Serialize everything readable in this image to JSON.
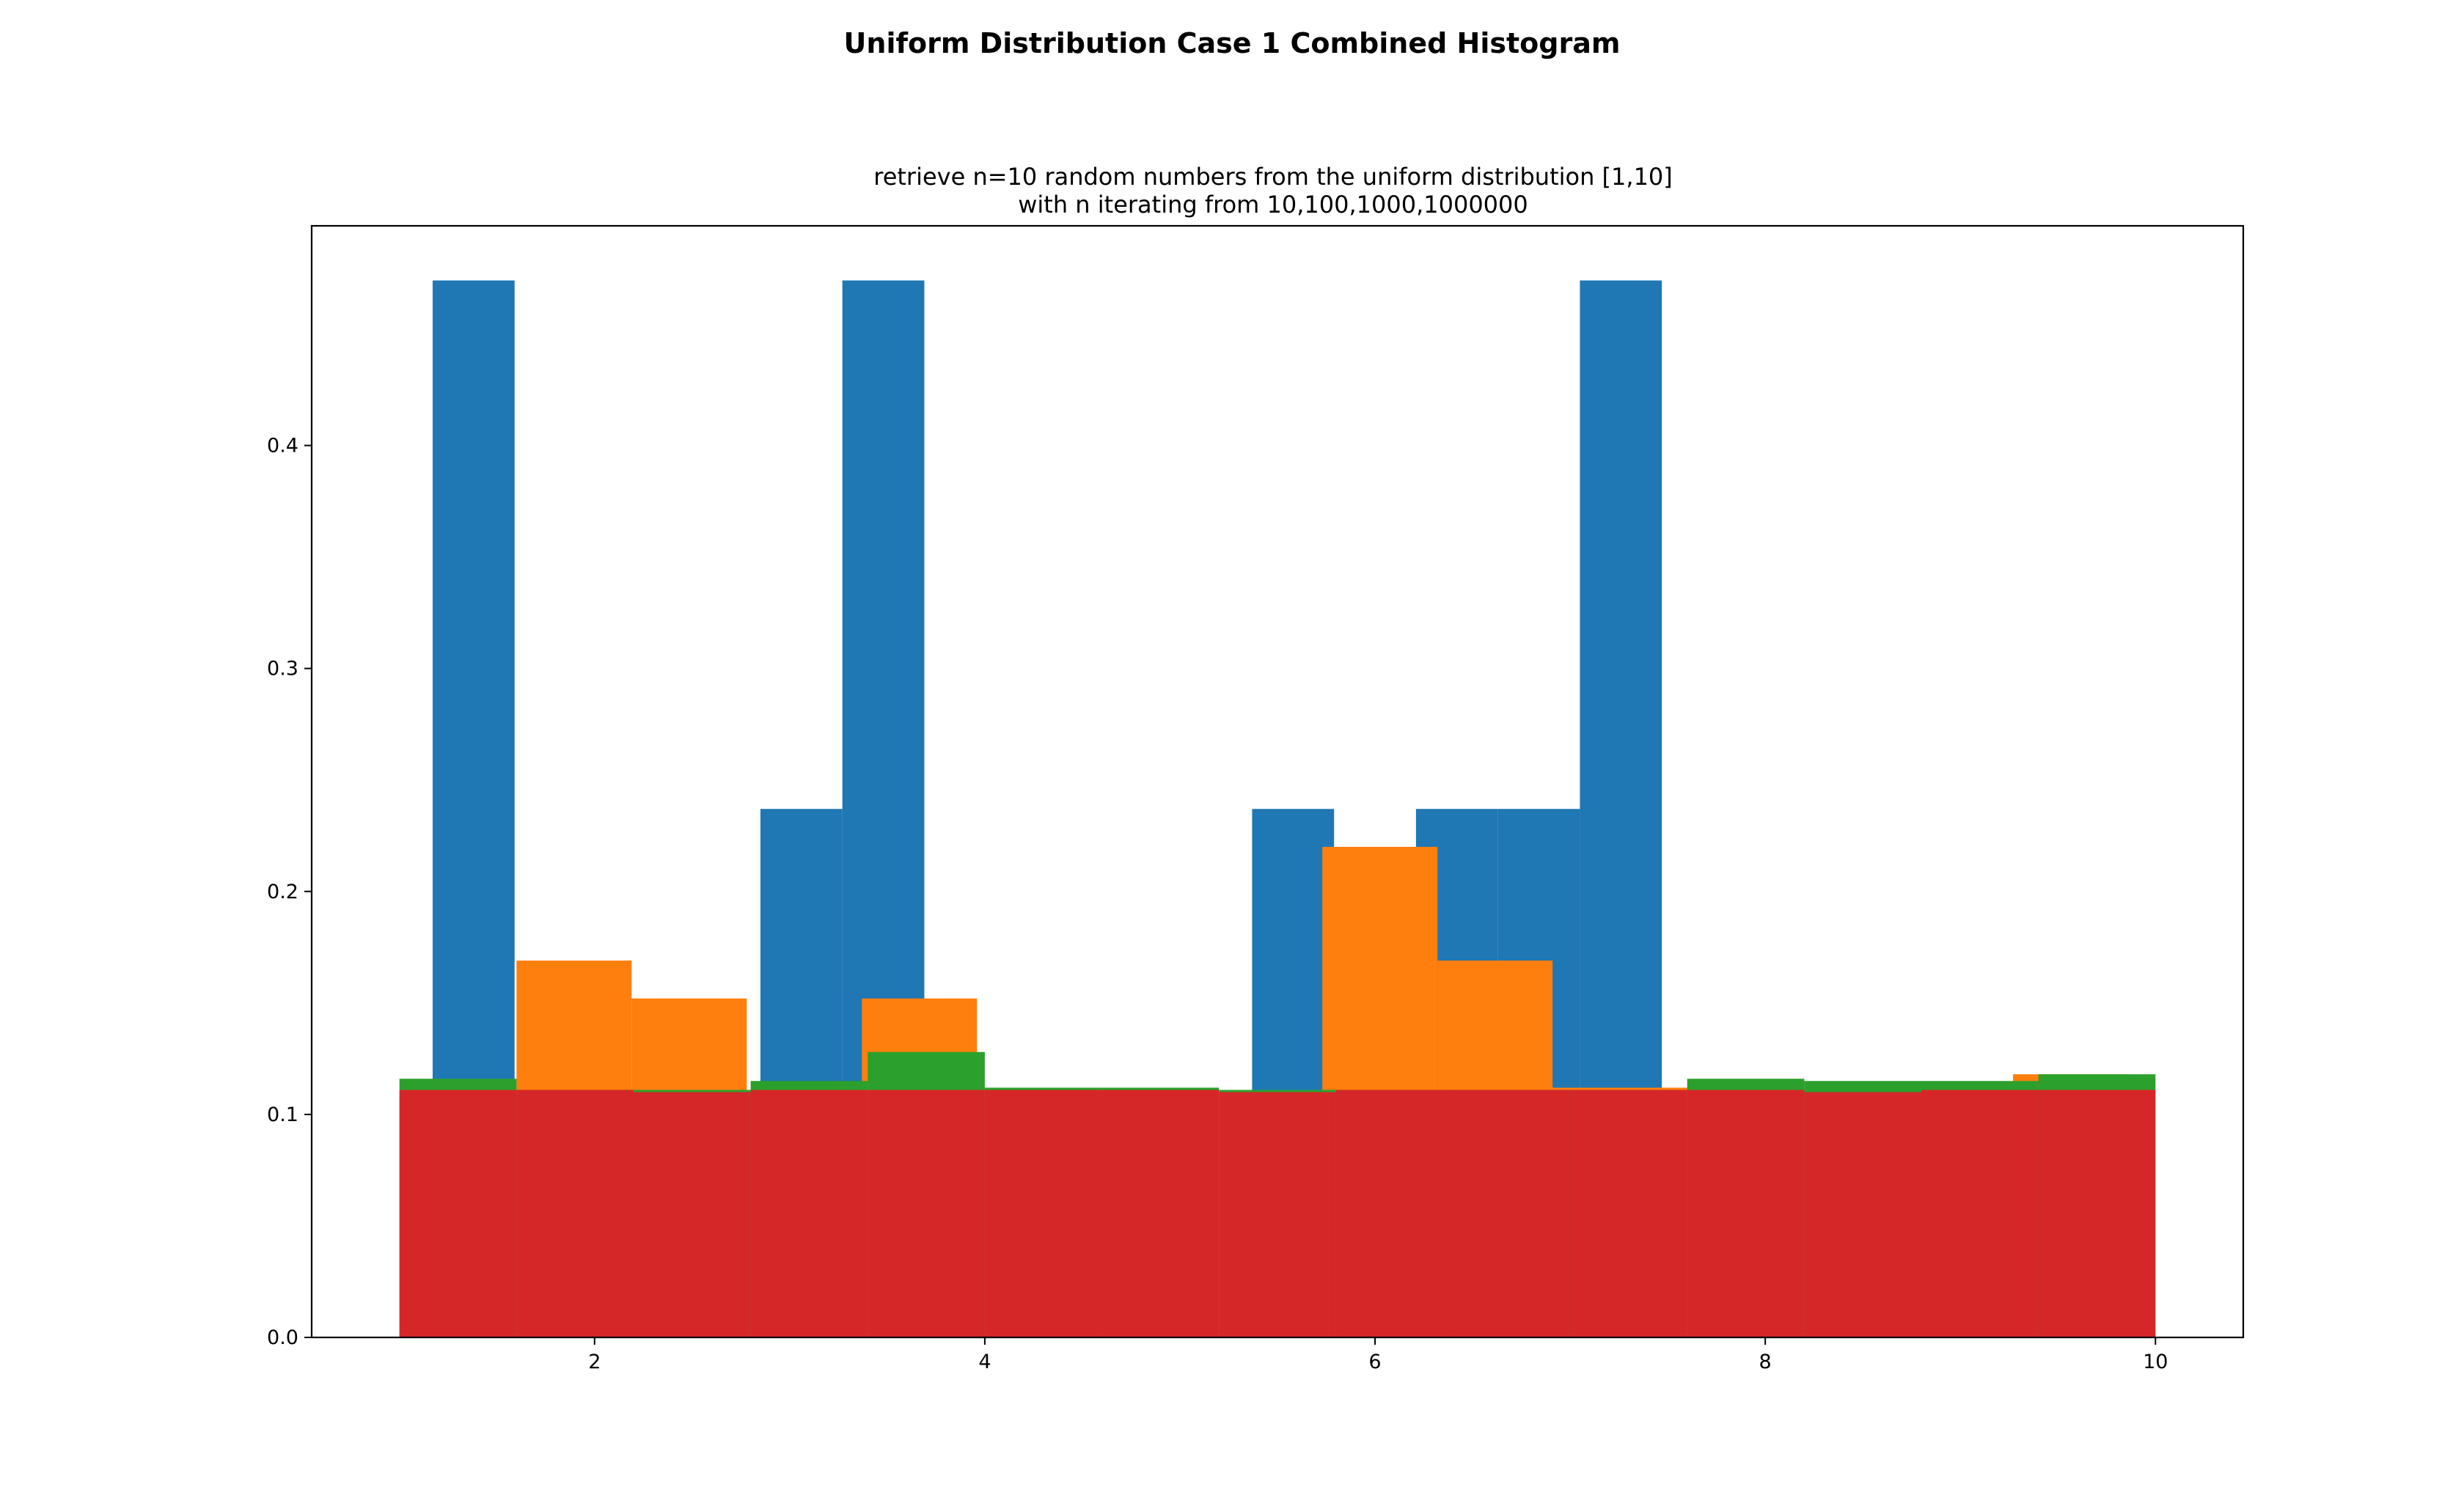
{
  "chart_data": {
    "type": "bar",
    "title": "Uniform Distribution Case 1 Combined Histogram",
    "subtitle_lines": [
      "retrieve n=10 random numbers from the uniform distribution [1,10]",
      "with n iterating from 10,100,1000,1000000"
    ],
    "xlabel": "",
    "ylabel": "",
    "xlim": [
      0.55,
      10.45
    ],
    "ylim": [
      0,
      0.4985
    ],
    "xticks": [
      2,
      4,
      6,
      8,
      10
    ],
    "yticks": [
      0.0,
      0.1,
      0.2,
      0.3,
      0.4
    ],
    "xtick_labels": [
      "2",
      "4",
      "6",
      "8",
      "10"
    ],
    "ytick_labels": [
      "0.0",
      "0.1",
      "0.2",
      "0.3",
      "0.4"
    ],
    "grid": false,
    "legend": "none",
    "series": [
      {
        "color": "#1f77b4",
        "bin_edges": [
          1.17,
          1.59,
          2.01,
          2.43,
          2.85,
          3.27,
          3.69,
          4.11,
          4.53,
          4.95,
          5.37,
          5.79,
          6.21,
          6.63,
          7.05,
          7.47
        ],
        "values": [
          0.474,
          0,
          0,
          0,
          0.237,
          0.474,
          0,
          0,
          0,
          0,
          0.237,
          0,
          0.237,
          0.237,
          0.474
        ]
      },
      {
        "color": "#ff7f0e",
        "bin_edges": [
          1.6,
          2.19,
          2.78,
          3.37,
          3.96,
          4.55,
          5.14,
          5.73,
          6.32,
          6.91,
          7.5,
          8.09,
          8.68,
          9.27,
          9.86,
          10.0
        ],
        "values": [
          0.169,
          0.152,
          0,
          0.152,
          0,
          0,
          0,
          0.22,
          0.169,
          0.112,
          0.112,
          0,
          0,
          0.118,
          0
        ]
      },
      {
        "color": "#2ca02c",
        "bin_edges": [
          1.0,
          1.6,
          2.2,
          2.8,
          3.4,
          4.0,
          4.6,
          5.2,
          5.8,
          6.4,
          7.0,
          7.6,
          8.2,
          8.8,
          9.4,
          10.0
        ],
        "values": [
          0.116,
          0.111,
          0.111,
          0.115,
          0.128,
          0.112,
          0.112,
          0.111,
          0.111,
          0.111,
          0.111,
          0.116,
          0.115,
          0.115,
          0.118
        ]
      },
      {
        "color": "#d62728",
        "bin_edges": [
          1.0,
          1.6,
          2.2,
          2.8,
          3.4,
          4.0,
          4.6,
          5.2,
          5.8,
          6.4,
          7.0,
          7.6,
          8.2,
          8.8,
          9.4,
          10.0
        ],
        "values": [
          0.111,
          0.111,
          0.11,
          0.111,
          0.111,
          0.111,
          0.111,
          0.11,
          0.111,
          0.111,
          0.111,
          0.111,
          0.11,
          0.111,
          0.111
        ]
      }
    ]
  }
}
